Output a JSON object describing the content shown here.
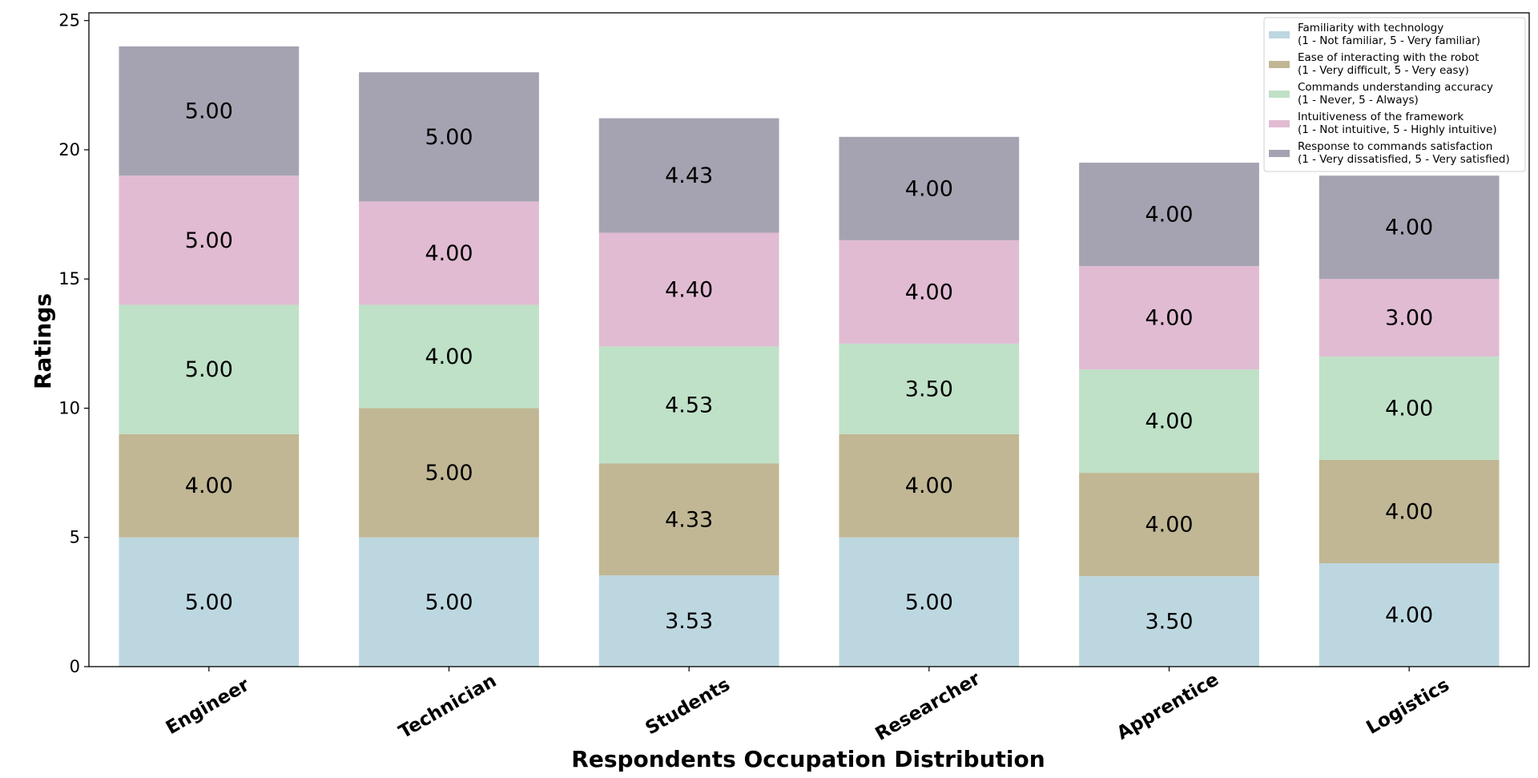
{
  "chart_data": {
    "type": "bar",
    "stacked": true,
    "categories": [
      "Engineer",
      "Technician",
      "Students",
      "Researcher",
      "Apprentice",
      "Logistics"
    ],
    "series": [
      {
        "name": "Familiarity with technology",
        "name_line2": "(1 - Not familiar, 5 - Very familiar)",
        "color": "#bdd7e0",
        "values": [
          5.0,
          5.0,
          3.53,
          5.0,
          3.5,
          4.0
        ],
        "labels": [
          "5.00",
          "5.00",
          "3.53",
          "5.00",
          "3.50",
          "4.00"
        ]
      },
      {
        "name": "Ease of interacting with the robot",
        "name_line2": "(1 - Very difficult, 5 - Very easy)",
        "color": "#c1b794",
        "values": [
          4.0,
          5.0,
          4.33,
          4.0,
          4.0,
          4.0
        ],
        "labels": [
          "4.00",
          "5.00",
          "4.33",
          "4.00",
          "4.00",
          "4.00"
        ]
      },
      {
        "name": "Commands understanding accuracy",
        "name_line2": "(1 - Never, 5 - Always)",
        "color": "#bfe1c7",
        "values": [
          5.0,
          4.0,
          4.53,
          3.5,
          4.0,
          4.0
        ],
        "labels": [
          "5.00",
          "4.00",
          "4.53",
          "3.50",
          "4.00",
          "4.00"
        ]
      },
      {
        "name": "Intuitiveness of the framework",
        "name_line2": "(1 - Not intuitive, 5 - Highly intuitive)",
        "color": "#e1bbd2",
        "values": [
          5.0,
          4.0,
          4.4,
          4.0,
          4.0,
          3.0
        ],
        "labels": [
          "5.00",
          "4.00",
          "4.40",
          "4.00",
          "4.00",
          "3.00"
        ]
      },
      {
        "name": "Response to commands satisfaction",
        "name_line2": "(1 - Very dissatisfied, 5 - Very satisfied)",
        "color": "#a5a3b1",
        "values": [
          5.0,
          5.0,
          4.43,
          4.0,
          4.0,
          4.0
        ],
        "labels": [
          "5.00",
          "5.00",
          "4.43",
          "4.00",
          "4.00",
          "4.00"
        ]
      }
    ],
    "xlabel": "Respondents Occupation Distribution",
    "ylabel": "Ratings",
    "ylim": [
      0,
      25.3
    ],
    "yticks": [
      0,
      5,
      10,
      15,
      20,
      25
    ],
    "grid": false,
    "legend_position": "top-right"
  }
}
